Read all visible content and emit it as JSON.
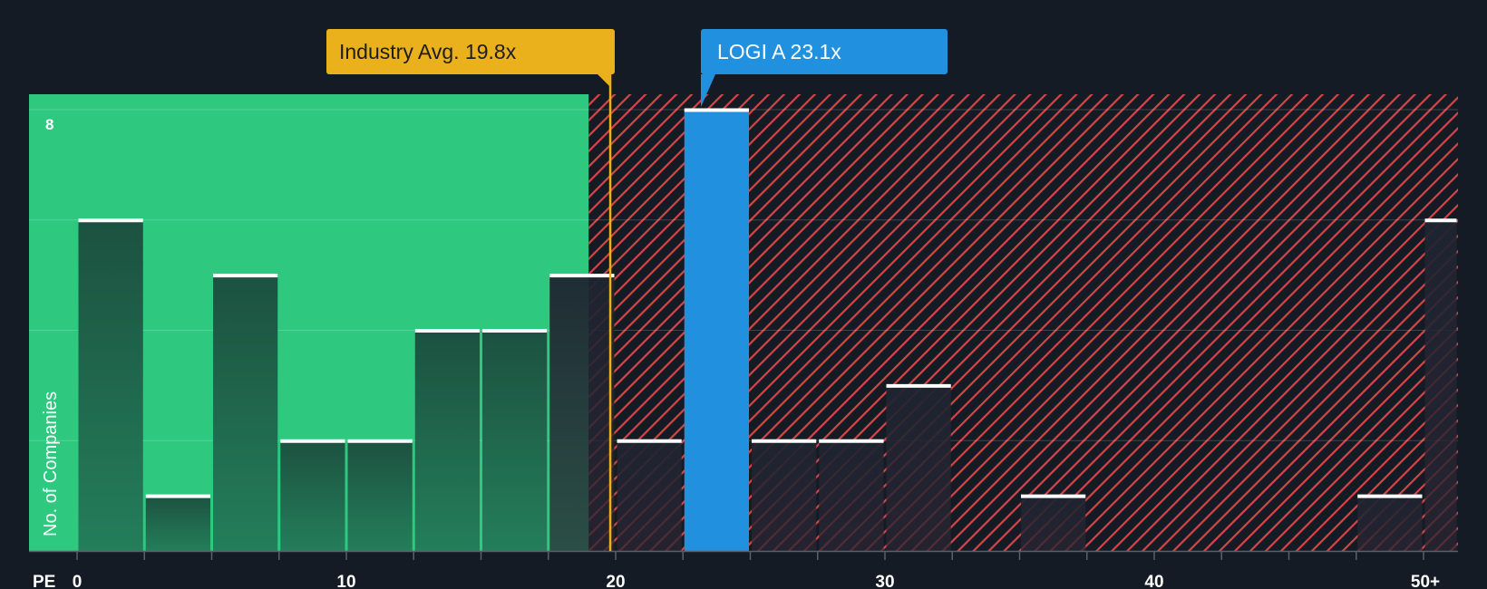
{
  "chart_data": {
    "type": "bar",
    "subtype": "histogram",
    "ylabel": "No. of Companies",
    "xlabel": "PE",
    "x_ticks": [
      "0",
      "10",
      "20",
      "30",
      "40",
      "50+"
    ],
    "x_tick_values": [
      0,
      10,
      20,
      30,
      40,
      50
    ],
    "x_range": [
      0,
      51.5
    ],
    "ylim": [
      0,
      8.3
    ],
    "y_ticks": [
      8
    ],
    "gridlines": [
      2,
      4,
      6,
      8
    ],
    "bins": [
      {
        "x0": 0,
        "x1": 2.5,
        "count": 6
      },
      {
        "x0": 2.5,
        "x1": 5,
        "count": 1
      },
      {
        "x0": 5,
        "x1": 7.5,
        "count": 5
      },
      {
        "x0": 7.5,
        "x1": 10,
        "count": 2
      },
      {
        "x0": 10,
        "x1": 12.5,
        "count": 2
      },
      {
        "x0": 12.5,
        "x1": 15,
        "count": 4
      },
      {
        "x0": 15,
        "x1": 17.5,
        "count": 4
      },
      {
        "x0": 17.5,
        "x1": 20,
        "count": 5
      },
      {
        "x0": 20,
        "x1": 22.5,
        "count": 2
      },
      {
        "x0": 22.5,
        "x1": 25,
        "count": 8,
        "highlight": true
      },
      {
        "x0": 25,
        "x1": 27.5,
        "count": 2
      },
      {
        "x0": 27.5,
        "x1": 30,
        "count": 2
      },
      {
        "x0": 30,
        "x1": 32.5,
        "count": 3
      },
      {
        "x0": 32.5,
        "x1": 35,
        "count": 0
      },
      {
        "x0": 35,
        "x1": 37.5,
        "count": 1
      },
      {
        "x0": 37.5,
        "x1": 40,
        "count": 0
      },
      {
        "x0": 40,
        "x1": 42.5,
        "count": 0
      },
      {
        "x0": 42.5,
        "x1": 45,
        "count": 0
      },
      {
        "x0": 45,
        "x1": 47.5,
        "count": 0
      },
      {
        "x0": 47.5,
        "x1": 50,
        "count": 1
      },
      {
        "x0": 50,
        "x1": 51.5,
        "count": 6
      }
    ],
    "fair_value_boundary": 19.0,
    "industry_avg": {
      "label": "Industry Avg. 19.8x",
      "value": 19.8
    },
    "company": {
      "label": "LOGI A 23.1x",
      "value": 23.1,
      "bin_center": 23.75
    },
    "colors": {
      "background": "#151b24",
      "undervalued_zone": "#2ec97f",
      "overvalued_hatch": "#d64545",
      "bar_dark": "#1b4b3d",
      "bar_highlight": "#2191df",
      "bar_cap": "#ffffff",
      "industry": "#eab11c"
    }
  }
}
